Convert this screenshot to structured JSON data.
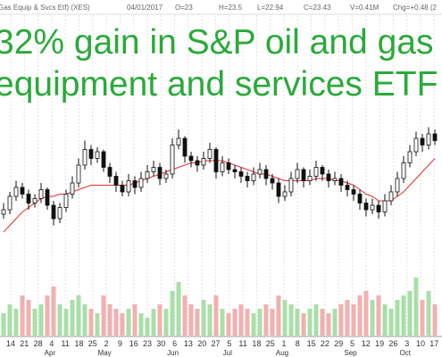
{
  "chart_data": {
    "type": "candlestick",
    "header": [
      "Gas Equip & Svcs Etf) (XES)",
      "04/01/2017",
      "O=23",
      "H=23.5",
      "L=22.94",
      "C=23.43",
      "V=0.41M",
      "Chg=+0.48 (2"
    ],
    "title_lines": [
      "32% gain in S&P oil and gas",
      "equipment and services ETF"
    ],
    "title_color": "#2aaa3a",
    "day_labels": [
      "14",
      "21",
      "28",
      "4",
      "11",
      "18",
      "25",
      "2",
      "9",
      "16",
      "23",
      "30",
      "6",
      "13",
      "20",
      "27",
      "5",
      "11",
      "18",
      "25",
      "1",
      "8",
      "15",
      "22",
      "29",
      "5",
      "12",
      "19",
      "26",
      "3",
      "10",
      "17"
    ],
    "month_labels": [
      null,
      null,
      null,
      "Apr",
      null,
      null,
      null,
      "May",
      null,
      null,
      null,
      null,
      "Jun",
      null,
      null,
      null,
      "Jul",
      null,
      null,
      null,
      "Aug",
      null,
      null,
      null,
      null,
      "Sep",
      null,
      null,
      null,
      "Oct",
      null,
      null
    ],
    "ylim": [
      19,
      26.6
    ],
    "vlim": [
      0,
      1.6
    ],
    "grid": true,
    "up_color": "#ffffff",
    "down_color": "#111111",
    "ma_color": "#e03030",
    "volume_up_color": "#a9dfa9",
    "volume_down_color": "#f2b0b0",
    "ohlc": [
      [
        21.0,
        21.5,
        20.8,
        21.2
      ],
      [
        21.2,
        22.0,
        21.0,
        21.8
      ],
      [
        21.8,
        22.5,
        21.6,
        22.2
      ],
      [
        22.2,
        22.4,
        21.7,
        21.9
      ],
      [
        21.9,
        22.1,
        21.2,
        21.5
      ],
      [
        21.5,
        21.9,
        21.3,
        21.7
      ],
      [
        21.7,
        22.4,
        21.5,
        22.1
      ],
      [
        22.1,
        22.2,
        21.2,
        21.4
      ],
      [
        21.4,
        21.6,
        20.5,
        20.8
      ],
      [
        20.8,
        21.5,
        20.6,
        21.3
      ],
      [
        21.3,
        22.1,
        21.1,
        21.9
      ],
      [
        21.9,
        22.7,
        21.7,
        22.4
      ],
      [
        22.4,
        23.5,
        22.2,
        23.2
      ],
      [
        23.2,
        24.3,
        23.0,
        23.9
      ],
      [
        23.9,
        24.1,
        23.2,
        23.5
      ],
      [
        23.5,
        24.0,
        23.3,
        23.8
      ],
      [
        23.8,
        23.9,
        22.9,
        23.1
      ],
      [
        23.1,
        23.3,
        22.4,
        22.7
      ],
      [
        22.7,
        22.9,
        22.0,
        22.3
      ],
      [
        22.3,
        22.5,
        21.8,
        22.0
      ],
      [
        22.0,
        22.8,
        21.8,
        22.5
      ],
      [
        22.5,
        22.7,
        21.9,
        22.2
      ],
      [
        22.2,
        22.9,
        22.0,
        22.6
      ],
      [
        22.6,
        23.2,
        22.4,
        22.9
      ],
      [
        22.9,
        23.4,
        22.7,
        23.1
      ],
      [
        23.1,
        23.3,
        22.3,
        22.6
      ],
      [
        22.6,
        23.0,
        22.4,
        22.8
      ],
      [
        22.8,
        24.4,
        22.6,
        24.1
      ],
      [
        24.1,
        24.8,
        23.9,
        24.4
      ],
      [
        24.4,
        24.5,
        23.3,
        23.6
      ],
      [
        23.6,
        23.8,
        23.1,
        23.4
      ],
      [
        23.4,
        23.6,
        22.9,
        23.2
      ],
      [
        23.2,
        23.8,
        23.0,
        23.5
      ],
      [
        23.5,
        24.2,
        23.3,
        23.9
      ],
      [
        23.9,
        24.0,
        22.6,
        22.9
      ],
      [
        22.9,
        23.6,
        22.7,
        23.3
      ],
      [
        23.3,
        23.5,
        22.8,
        23.0
      ],
      [
        23.0,
        23.2,
        22.6,
        22.9
      ],
      [
        22.9,
        23.1,
        22.4,
        22.7
      ],
      [
        22.7,
        22.9,
        22.2,
        22.5
      ],
      [
        22.5,
        23.1,
        22.3,
        22.8
      ],
      [
        22.8,
        23.3,
        22.6,
        23.0
      ],
      [
        23.0,
        23.2,
        22.3,
        22.6
      ],
      [
        22.6,
        22.8,
        22.1,
        22.4
      ],
      [
        22.4,
        22.6,
        21.5,
        21.8
      ],
      [
        21.8,
        22.3,
        21.6,
        22.0
      ],
      [
        22.0,
        22.9,
        21.8,
        22.6
      ],
      [
        22.6,
        23.3,
        22.4,
        23.0
      ],
      [
        23.0,
        23.1,
        22.2,
        22.5
      ],
      [
        22.5,
        23.0,
        22.3,
        22.7
      ],
      [
        22.7,
        23.4,
        22.5,
        23.1
      ],
      [
        23.1,
        23.2,
        22.5,
        22.8
      ],
      [
        22.8,
        23.0,
        22.2,
        22.5
      ],
      [
        22.5,
        22.9,
        22.3,
        22.6
      ],
      [
        22.6,
        22.8,
        22.0,
        22.3
      ],
      [
        22.3,
        22.5,
        21.8,
        22.1
      ],
      [
        22.1,
        22.3,
        21.6,
        21.9
      ],
      [
        21.9,
        22.1,
        21.2,
        21.5
      ],
      [
        21.5,
        21.7,
        20.9,
        21.2
      ],
      [
        21.2,
        21.7,
        21.0,
        21.4
      ],
      [
        21.4,
        21.6,
        20.8,
        21.1
      ],
      [
        21.1,
        21.9,
        20.9,
        21.6
      ],
      [
        21.6,
        22.3,
        21.4,
        22.0
      ],
      [
        22.0,
        22.9,
        21.8,
        22.6
      ],
      [
        22.6,
        23.6,
        22.4,
        23.3
      ],
      [
        23.3,
        24.1,
        23.1,
        23.8
      ],
      [
        23.8,
        24.7,
        23.6,
        24.4
      ],
      [
        24.4,
        24.6,
        23.8,
        24.1
      ],
      [
        24.1,
        24.9,
        23.9,
        24.6
      ],
      [
        24.6,
        24.8,
        24.1,
        24.3
      ]
    ],
    "moving_average": [
      20.2,
      20.5,
      20.8,
      21.1,
      21.3,
      21.5,
      21.7,
      21.8,
      21.8,
      21.9,
      21.9,
      22.0,
      22.1,
      22.2,
      22.3,
      22.3,
      22.3,
      22.3,
      22.3,
      22.3,
      22.3,
      22.4,
      22.5,
      22.6,
      22.7,
      22.8,
      22.9,
      23.0,
      23.1,
      23.2,
      23.3,
      23.3,
      23.4,
      23.4,
      23.4,
      23.4,
      23.3,
      23.2,
      23.1,
      23.0,
      22.9,
      22.8,
      22.8,
      22.7,
      22.6,
      22.5,
      22.5,
      22.5,
      22.5,
      22.5,
      22.6,
      22.6,
      22.6,
      22.5,
      22.5,
      22.4,
      22.3,
      22.1,
      21.9,
      21.8,
      21.6,
      21.6,
      21.6,
      21.8,
      22.0,
      22.3,
      22.6,
      22.9,
      23.2,
      23.5
    ],
    "volume": [
      0.5,
      0.7,
      0.6,
      0.9,
      0.8,
      0.6,
      0.7,
      0.9,
      1.1,
      0.7,
      0.6,
      0.8,
      0.9,
      0.7,
      0.6,
      0.5,
      0.9,
      0.7,
      0.6,
      0.5,
      0.6,
      0.7,
      0.5,
      0.4,
      0.6,
      0.7,
      0.6,
      1.0,
      1.2,
      0.9,
      0.7,
      0.6,
      0.8,
      0.7,
      0.9,
      0.6,
      0.5,
      0.6,
      0.7,
      0.6,
      0.5,
      0.6,
      0.7,
      0.6,
      0.9,
      0.8,
      0.7,
      0.6,
      0.5,
      0.6,
      0.7,
      0.6,
      0.5,
      0.6,
      0.7,
      0.8,
      0.7,
      0.9,
      1.0,
      0.8,
      0.9,
      0.7,
      0.6,
      0.8,
      0.9,
      1.0,
      1.3,
      0.8,
      1.0,
      0.7
    ]
  }
}
